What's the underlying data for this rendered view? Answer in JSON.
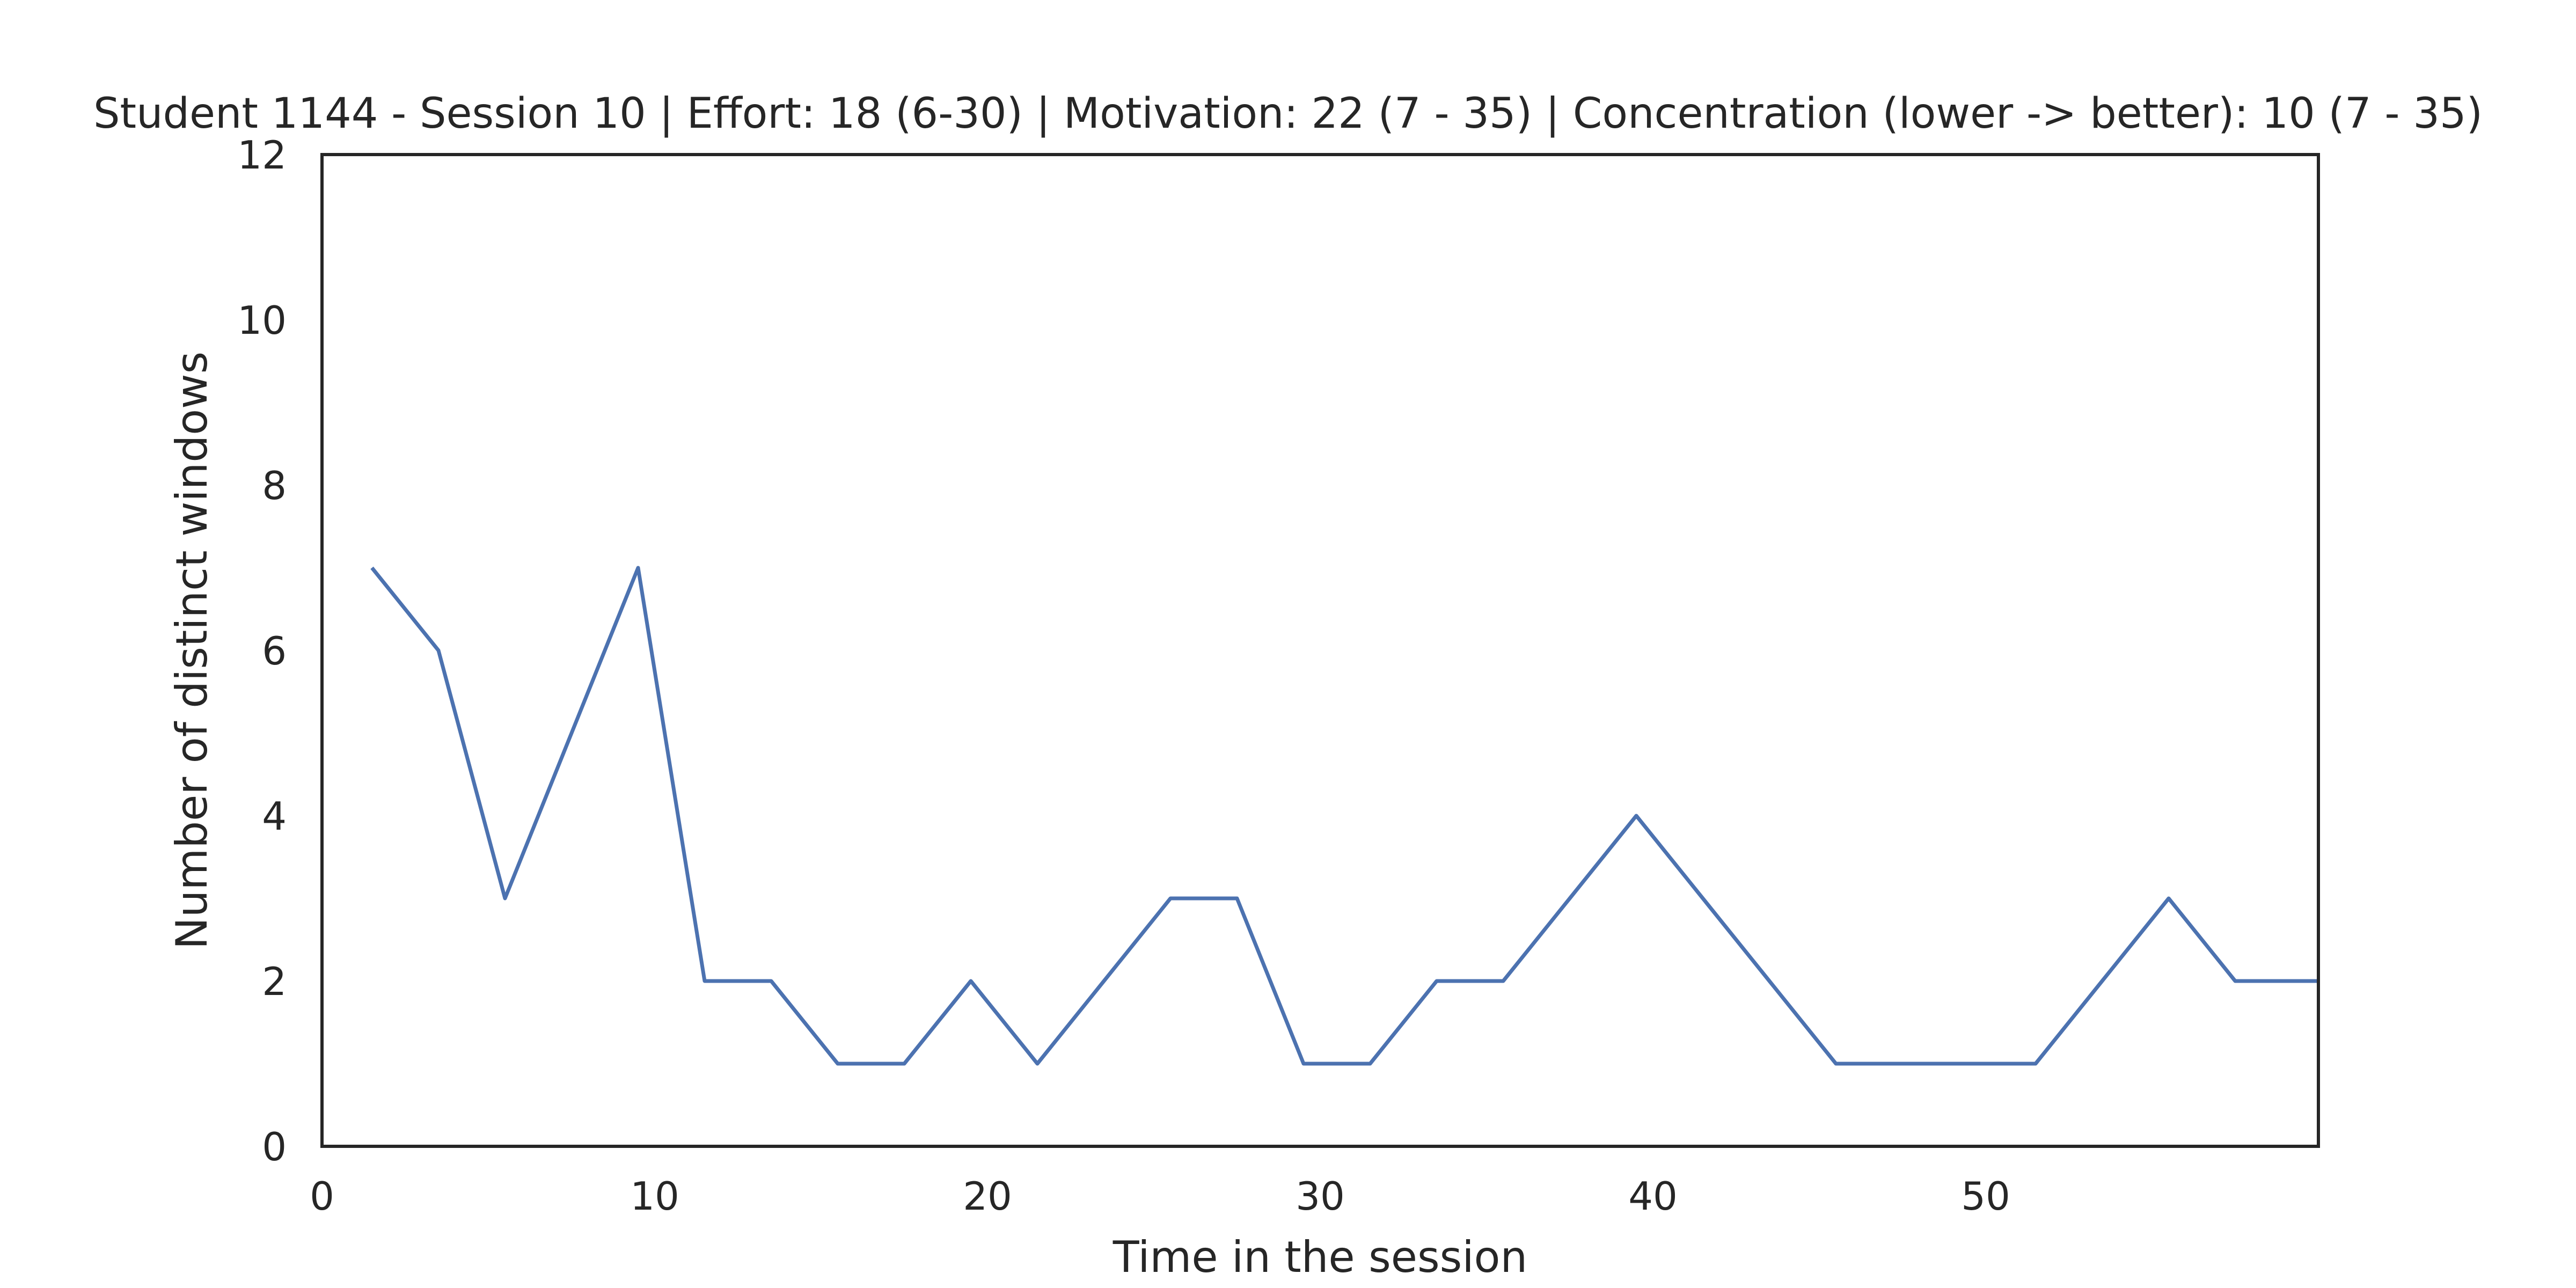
{
  "chart_data": {
    "type": "line",
    "title": "Student 1144 - Session 10 | Effort: 18 (6-30) | Motivation: 22 (7 - 35) | Concentration (lower -> better): 10 (7 - 35)",
    "xlabel": "Time in the session",
    "ylabel": "Number of distinct windows",
    "xlim": [
      0,
      60
    ],
    "ylim": [
      0,
      12
    ],
    "x_ticks": [
      "0",
      "10",
      "20",
      "30",
      "40",
      "50"
    ],
    "y_ticks": [
      "0",
      "2",
      "4",
      "6",
      "8",
      "10",
      "12"
    ],
    "grid": false,
    "series": [
      {
        "color": "#4c72b0",
        "x": [
          1.5,
          3.5,
          5.5,
          7.5,
          9.5,
          11.5,
          13.5,
          15.5,
          17.5,
          19.5,
          21.5,
          23.5,
          25.5,
          27.5,
          29.5,
          31.5,
          33.5,
          35.5,
          37.5,
          39.5,
          41.5,
          43.5,
          45.5,
          47.5,
          49.5,
          51.5,
          53.5,
          55.5,
          57.5,
          59.5,
          60
        ],
        "y": [
          7,
          6,
          3,
          5,
          7,
          2,
          2,
          1,
          1,
          2,
          1,
          2,
          3,
          3,
          1,
          1,
          2,
          2,
          3,
          4,
          3,
          2,
          1,
          1,
          1,
          1,
          2,
          3,
          2,
          2,
          2
        ]
      }
    ]
  }
}
